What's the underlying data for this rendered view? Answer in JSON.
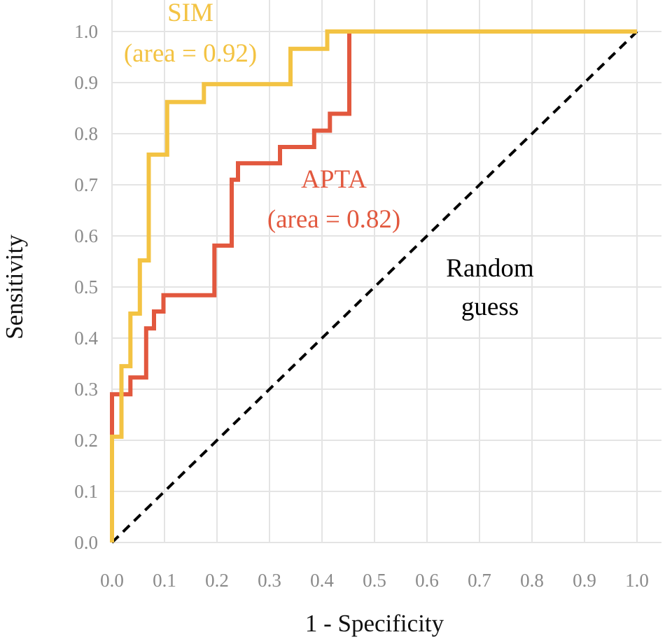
{
  "chart_data": {
    "type": "line",
    "title": "",
    "xlabel": "1 - Specificity",
    "ylabel": "Sensitivity",
    "xlim": [
      0,
      1
    ],
    "ylim": [
      0,
      1
    ],
    "grid": true,
    "x_ticks": [
      0.0,
      0.1,
      0.2,
      0.3,
      0.4,
      0.5,
      0.6,
      0.7,
      0.8,
      0.9,
      1.0
    ],
    "y_ticks": [
      0.0,
      0.1,
      0.2,
      0.3,
      0.4,
      0.5,
      0.6,
      0.7,
      0.8,
      0.9,
      1.0
    ],
    "x_tick_labels": [
      "0.0",
      "0.1",
      "0.2",
      "0.3",
      "0.4",
      "0.5",
      "0.6",
      "0.7",
      "0.8",
      "0.9",
      "1.0"
    ],
    "y_tick_labels": [
      "0.0",
      "0.1",
      "0.2",
      "0.3",
      "0.4",
      "0.5",
      "0.6",
      "0.7",
      "0.8",
      "0.9",
      "1.0"
    ],
    "series": [
      {
        "name": "SIM",
        "auc_label": "(area = 0.92)",
        "color": "#f3c343",
        "style": "step",
        "points": [
          [
            0.0,
            0.0
          ],
          [
            0.0,
            0.207
          ],
          [
            0.018,
            0.207
          ],
          [
            0.018,
            0.345
          ],
          [
            0.035,
            0.345
          ],
          [
            0.035,
            0.448
          ],
          [
            0.053,
            0.448
          ],
          [
            0.053,
            0.552
          ],
          [
            0.07,
            0.552
          ],
          [
            0.07,
            0.759
          ],
          [
            0.105,
            0.759
          ],
          [
            0.105,
            0.862
          ],
          [
            0.175,
            0.862
          ],
          [
            0.175,
            0.897
          ],
          [
            0.34,
            0.897
          ],
          [
            0.34,
            0.966
          ],
          [
            0.41,
            0.966
          ],
          [
            0.41,
            1.0
          ],
          [
            1.0,
            1.0
          ]
        ]
      },
      {
        "name": "APTA",
        "auc_label": "(area = 0.82)",
        "color": "#e2583e",
        "style": "step",
        "points": [
          [
            0.0,
            0.21
          ],
          [
            0.0,
            0.29
          ],
          [
            0.035,
            0.29
          ],
          [
            0.035,
            0.323
          ],
          [
            0.065,
            0.323
          ],
          [
            0.065,
            0.419
          ],
          [
            0.08,
            0.419
          ],
          [
            0.08,
            0.452
          ],
          [
            0.098,
            0.452
          ],
          [
            0.098,
            0.484
          ],
          [
            0.195,
            0.484
          ],
          [
            0.195,
            0.581
          ],
          [
            0.228,
            0.581
          ],
          [
            0.228,
            0.71
          ],
          [
            0.24,
            0.71
          ],
          [
            0.24,
            0.742
          ],
          [
            0.32,
            0.742
          ],
          [
            0.32,
            0.774
          ],
          [
            0.385,
            0.774
          ],
          [
            0.385,
            0.806
          ],
          [
            0.415,
            0.806
          ],
          [
            0.415,
            0.839
          ],
          [
            0.452,
            0.839
          ],
          [
            0.452,
            1.0
          ]
        ]
      },
      {
        "name": "Random guess",
        "color": "#000000",
        "style": "dashed",
        "points": [
          [
            0.0,
            0.0
          ],
          [
            1.0,
            1.0
          ]
        ]
      }
    ],
    "annotations": [
      {
        "text": "SIM",
        "series": "SIM",
        "color": "#f3c343"
      },
      {
        "text": "(area = 0.92)",
        "series": "SIM",
        "color": "#f3c343"
      },
      {
        "text": "APTA",
        "series": "APTA",
        "color": "#e2583e"
      },
      {
        "text": "(area = 0.82)",
        "series": "APTA",
        "color": "#e2583e"
      },
      {
        "text": "Random",
        "series": "Random guess",
        "color": "#000000"
      },
      {
        "text": "guess",
        "series": "Random guess",
        "color": "#000000"
      }
    ]
  }
}
